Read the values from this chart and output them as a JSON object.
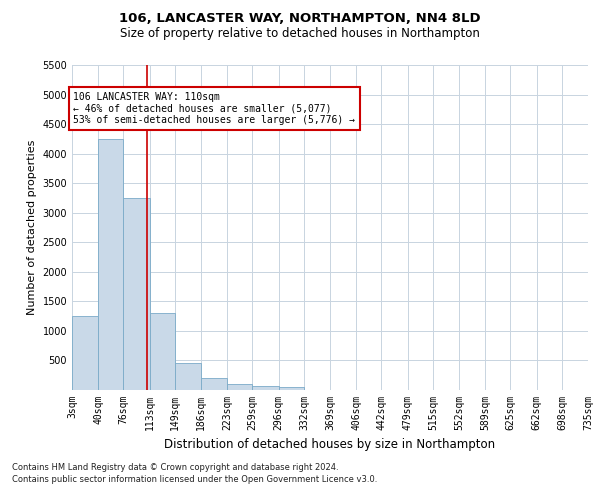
{
  "title": "106, LANCASTER WAY, NORTHAMPTON, NN4 8LD",
  "subtitle": "Size of property relative to detached houses in Northampton",
  "xlabel": "Distribution of detached houses by size in Northampton",
  "ylabel": "Number of detached properties",
  "footnote1": "Contains HM Land Registry data © Crown copyright and database right 2024.",
  "footnote2": "Contains public sector information licensed under the Open Government Licence v3.0.",
  "annotation_line1": "106 LANCASTER WAY: 110sqm",
  "annotation_line2": "← 46% of detached houses are smaller (5,077)",
  "annotation_line3": "53% of semi-detached houses are larger (5,776) →",
  "bar_color": "#c9d9e8",
  "bar_edge_color": "#7aaac8",
  "vline_color": "#cc0000",
  "annotation_box_color": "#ffffff",
  "annotation_box_edge": "#cc0000",
  "bin_edges": [
    3,
    40,
    76,
    113,
    149,
    186,
    223,
    259,
    296,
    332,
    369,
    406,
    442,
    479,
    515,
    552,
    589,
    625,
    662,
    698,
    735
  ],
  "bin_labels": [
    "3sqm",
    "40sqm",
    "76sqm",
    "113sqm",
    "149sqm",
    "186sqm",
    "223sqm",
    "259sqm",
    "296sqm",
    "332sqm",
    "369sqm",
    "406sqm",
    "442sqm",
    "479sqm",
    "515sqm",
    "552sqm",
    "589sqm",
    "625sqm",
    "662sqm",
    "698sqm",
    "735sqm"
  ],
  "bar_heights": [
    1250,
    4250,
    3250,
    1300,
    450,
    200,
    100,
    70,
    50,
    0,
    0,
    0,
    0,
    0,
    0,
    0,
    0,
    0,
    0,
    0
  ],
  "ylim": [
    0,
    5500
  ],
  "yticks": [
    0,
    500,
    1000,
    1500,
    2000,
    2500,
    3000,
    3500,
    4000,
    4500,
    5000,
    5500
  ],
  "property_size": 110,
  "background_color": "#ffffff",
  "grid_color": "#c8d4e0",
  "title_fontsize": 9.5,
  "subtitle_fontsize": 8.5,
  "ylabel_fontsize": 8,
  "xlabel_fontsize": 8.5,
  "tick_fontsize": 7,
  "annot_fontsize": 7,
  "footnote_fontsize": 6
}
